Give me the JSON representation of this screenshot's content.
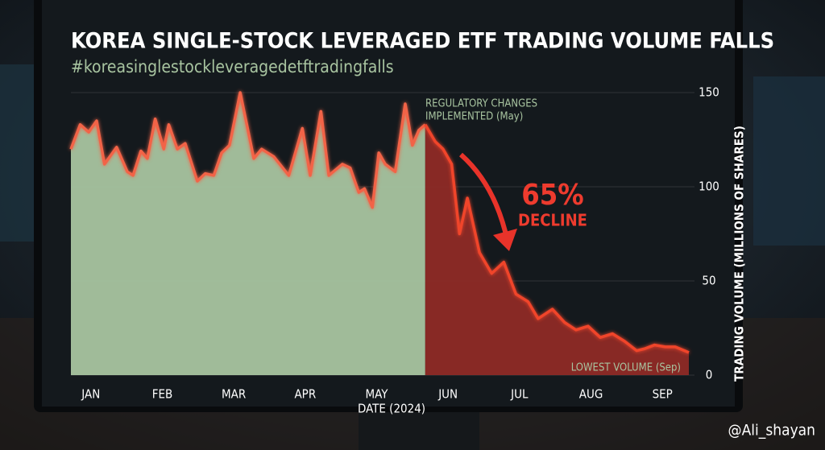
{
  "chart_data": {
    "type": "line",
    "title": "KOREA SINGLE-STOCK LEVERAGED ETF TRADING VOLUME FALLS",
    "subtitle": "#koreasinglestockleveragedetftradingfalls",
    "x_label": "DATE (2024)",
    "y_label": "TRADING VOLUME (MILLIONS OF SHARES)",
    "x": [
      0.72,
      0.85,
      0.97,
      1.08,
      1.19,
      1.36,
      1.51,
      1.59,
      1.7,
      1.79,
      1.9,
      2.02,
      2.09,
      2.21,
      2.32,
      2.49,
      2.6,
      2.72,
      2.83,
      2.94,
      3.09,
      3.28,
      3.39,
      3.56,
      3.77,
      3.96,
      4.07,
      4.22,
      4.33,
      4.52,
      4.63,
      4.75,
      4.83,
      4.94,
      5.03,
      5.12,
      5.26,
      5.4,
      5.5,
      5.59,
      5.68,
      5.82,
      5.93,
      6.05,
      6.16,
      6.27,
      6.44,
      6.61,
      6.78,
      6.95,
      7.12,
      7.26,
      7.46,
      7.63,
      7.79,
      7.96,
      8.13,
      8.3,
      8.47,
      8.64,
      8.75,
      8.89,
      9.04,
      9.18,
      9.37
    ],
    "series": [
      {
        "color": "#f26447",
        "fill": "#a8c4a0",
        "values": [
          120,
          133,
          129,
          135,
          112,
          121,
          108,
          106,
          119,
          115,
          136,
          120,
          133,
          120,
          123,
          103,
          107,
          106,
          118,
          122,
          150,
          115,
          120,
          116,
          106,
          131,
          106,
          140,
          106,
          112,
          110,
          97,
          99,
          89,
          118,
          112,
          108,
          144,
          122,
          130,
          133,
          null,
          null,
          null,
          null,
          null,
          null,
          null,
          null,
          null,
          null,
          null,
          null,
          null,
          null,
          null,
          null,
          null,
          null,
          null,
          null,
          null,
          null,
          null,
          null
        ]
      },
      {
        "color": "#f0442c",
        "fill": "#8e2a26",
        "values": [
          null,
          null,
          null,
          null,
          null,
          null,
          null,
          null,
          null,
          null,
          null,
          null,
          null,
          null,
          null,
          null,
          null,
          null,
          null,
          null,
          null,
          null,
          null,
          null,
          null,
          null,
          null,
          null,
          null,
          null,
          null,
          null,
          null,
          null,
          null,
          null,
          null,
          null,
          null,
          null,
          133,
          124,
          120,
          112,
          75,
          94,
          65,
          54,
          60,
          43,
          39,
          30,
          35,
          28,
          24,
          26,
          20,
          22,
          18,
          13,
          14,
          16,
          15,
          15,
          12
        ]
      }
    ],
    "xlim": [
      0.72,
      9.37
    ],
    "xticks": [
      {
        "value": 1,
        "label": "JAN"
      },
      {
        "value": 2,
        "label": "FEB"
      },
      {
        "value": 3,
        "label": "MAR"
      },
      {
        "value": 4,
        "label": "APR"
      },
      {
        "value": 5,
        "label": "MAY"
      },
      {
        "value": 6,
        "label": "JUN"
      },
      {
        "value": 7,
        "label": "JUL"
      },
      {
        "value": 8,
        "label": "AUG"
      },
      {
        "value": 9,
        "label": "SEP"
      }
    ],
    "ylim": [
      0,
      150
    ],
    "yticks": [
      0,
      50,
      100,
      150
    ],
    "grid": true,
    "annotations": [
      "REGULATORY CHANGES",
      "IMPLEMENTED (May)",
      "65%",
      "DECLINE",
      "LOWEST VOLUME (Sep)"
    ],
    "watermark": "@Ali_shayan"
  }
}
